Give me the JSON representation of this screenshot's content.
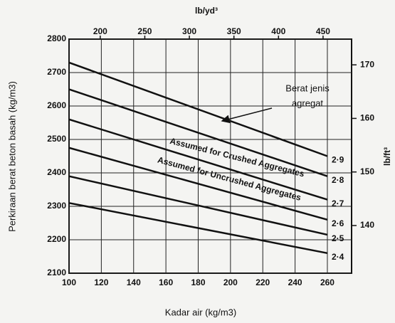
{
  "chart_data": {
    "type": "line",
    "xlabel": "Kadar air (kg/m3)",
    "ylabel": "Perkiraan berat beton basah (kg/m3)",
    "x2label": "lb/yd³",
    "y2label": "lb/ft³",
    "x": [
      100,
      260
    ],
    "series": [
      {
        "name": "2·9",
        "color": "#111111",
        "values": [
          2730,
          2450
        ]
      },
      {
        "name": "2·8",
        "color": "#111111",
        "values": [
          2650,
          2390
        ]
      },
      {
        "name": "2·7",
        "color": "#111111",
        "values": [
          2560,
          2320
        ]
      },
      {
        "name": "2·6",
        "color": "#111111",
        "values": [
          2475,
          2260
        ]
      },
      {
        "name": "2·5",
        "color": "#111111",
        "values": [
          2390,
          2215
        ]
      },
      {
        "name": "2·4",
        "color": "#111111",
        "values": [
          2310,
          2160
        ]
      }
    ],
    "xlim": [
      100,
      275
    ],
    "xticks": [
      100,
      120,
      140,
      160,
      180,
      200,
      220,
      240,
      260
    ],
    "ylim": [
      2100,
      2800
    ],
    "yticks": [
      2100,
      2200,
      2300,
      2400,
      2500,
      2600,
      2700,
      2800
    ],
    "x2lim": [
      165,
      482
    ],
    "x2ticks": [
      200,
      250,
      300,
      350,
      400,
      450
    ],
    "y2lim": [
      131.1,
      174.8
    ],
    "y2ticks": [
      140,
      150,
      160,
      170
    ],
    "grid": true,
    "annotations": [
      "Berat jenis",
      "agregat",
      "Assumed for Crushed Aggregates",
      "Assumed for Uncrushed Aggregates"
    ]
  }
}
